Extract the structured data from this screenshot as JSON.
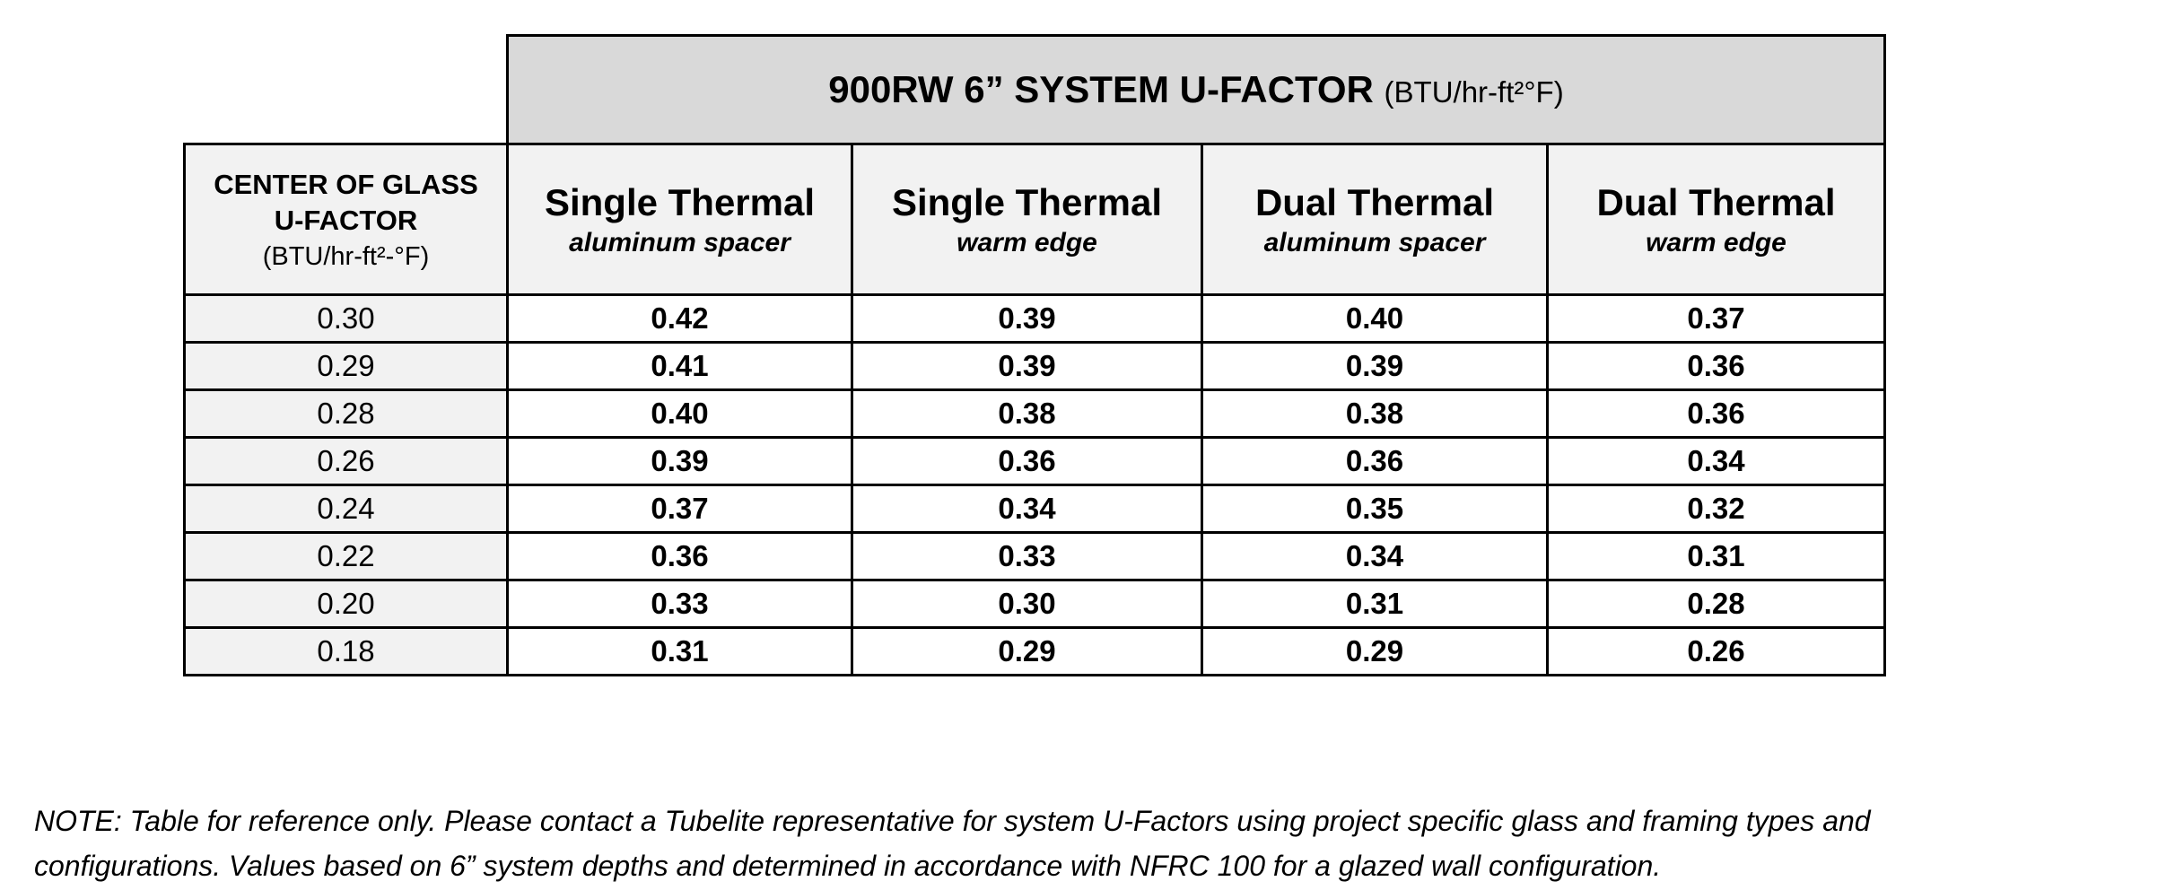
{
  "header": {
    "title": "900RW 6” SYSTEM U-FACTOR",
    "unit": "(BTU/hr-ft²°F)"
  },
  "table": {
    "row_header": {
      "title_lines": [
        "CENTER OF GLASS",
        "U-FACTOR"
      ],
      "unit": "(BTU/hr-ft²-°F)"
    },
    "columns": [
      {
        "title": "Single Thermal",
        "subtitle": "aluminum spacer"
      },
      {
        "title": "Single Thermal",
        "subtitle": "warm edge"
      },
      {
        "title": "Dual Thermal",
        "subtitle": "aluminum spacer"
      },
      {
        "title": "Dual Thermal",
        "subtitle": "warm edge"
      }
    ],
    "rows": [
      [
        "0.30",
        "0.42",
        "0.39",
        "0.40",
        "0.37"
      ],
      [
        "0.29",
        "0.41",
        "0.39",
        "0.39",
        "0.36"
      ],
      [
        "0.28",
        "0.40",
        "0.38",
        "0.38",
        "0.36"
      ],
      [
        "0.26",
        "0.39",
        "0.36",
        "0.36",
        "0.34"
      ],
      [
        "0.24",
        "0.37",
        "0.34",
        "0.35",
        "0.32"
      ],
      [
        "0.22",
        "0.36",
        "0.33",
        "0.34",
        "0.31"
      ],
      [
        "0.20",
        "0.33",
        "0.30",
        "0.31",
        "0.28"
      ],
      [
        "0.18",
        "0.31",
        "0.29",
        "0.29",
        "0.26"
      ]
    ]
  },
  "note": {
    "lines": [
      "NOTE:  Table for reference only.  Please contact a Tubelite representative for system U-Factors using project specific glass and framing types and",
      "configurations.  Values based on 6” system depths and determined in accordance with NFRC 100 for a glazed wall configuration."
    ]
  }
}
